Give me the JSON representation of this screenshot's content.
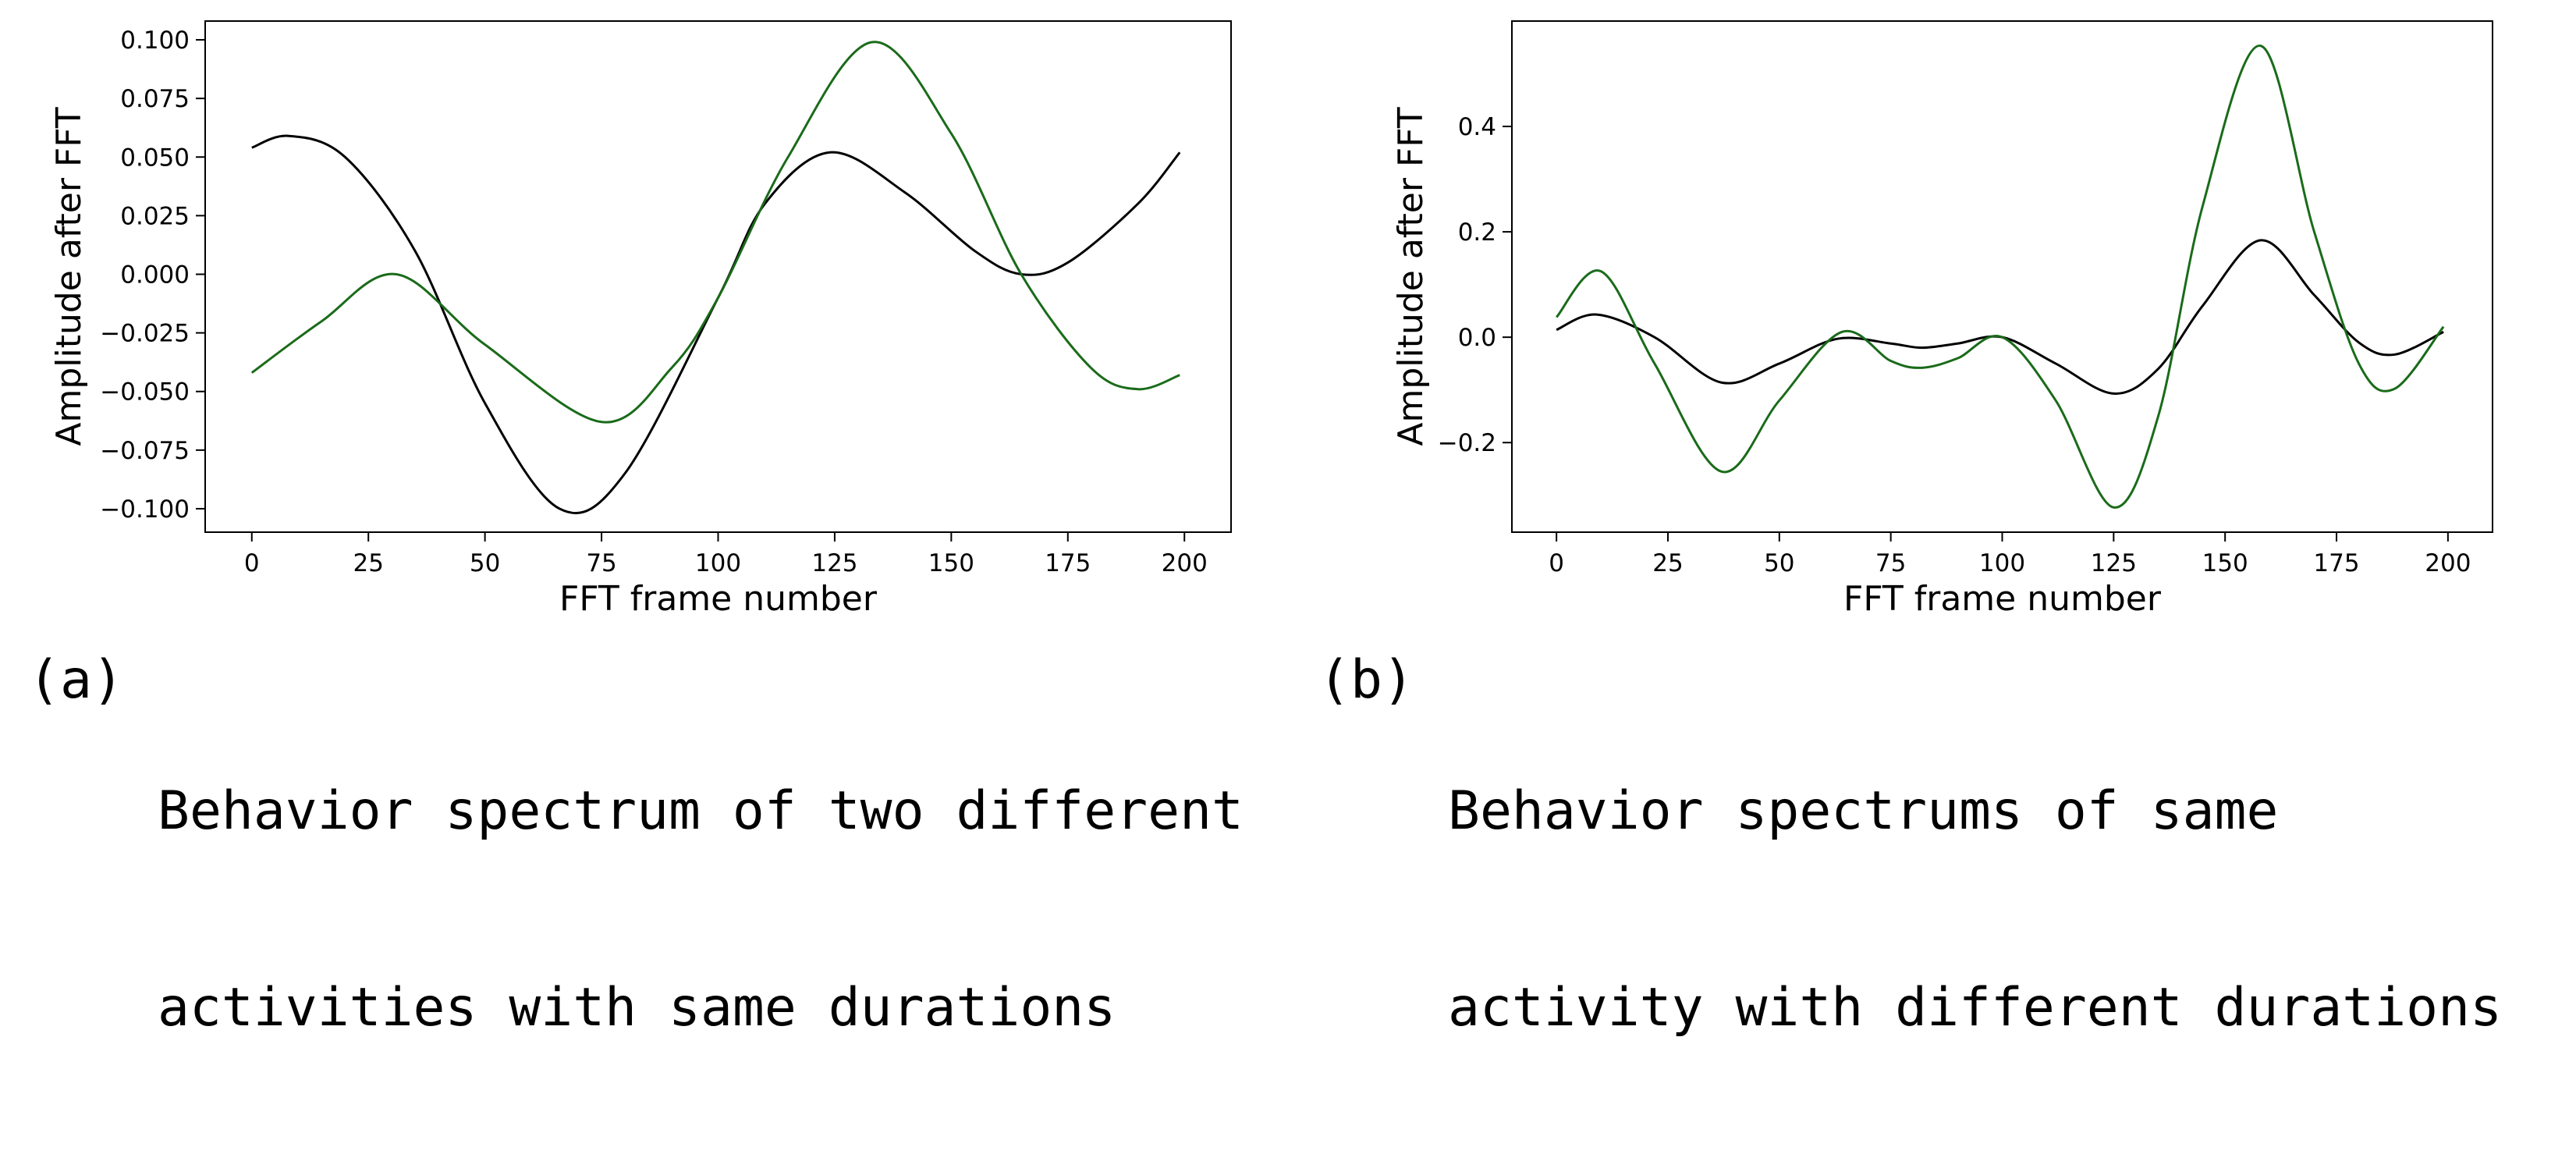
{
  "chart_data": [
    {
      "type": "line",
      "panel_label": "(a)",
      "caption_lines": [
        "Behavior spectrum of two different",
        "activities with same durations"
      ],
      "xlabel": "FFT frame number",
      "ylabel": "Amplitude after FFT",
      "xlim": [
        -10,
        210
      ],
      "ylim": [
        -0.11,
        0.108
      ],
      "xticks": [
        0,
        25,
        50,
        75,
        100,
        125,
        150,
        175,
        200
      ],
      "yticks": [
        -0.1,
        -0.075,
        -0.05,
        -0.025,
        0.0,
        0.025,
        0.05,
        0.075,
        0.1
      ],
      "ytick_labels": [
        "−0.100",
        "−0.075",
        "−0.050",
        "−0.025",
        "0.000",
        "0.025",
        "0.050",
        "0.075",
        "0.100"
      ],
      "grid": false,
      "series": [
        {
          "name": "black curve",
          "color": "#000000",
          "x": [
            0,
            8,
            20,
            35,
            50,
            66,
            80,
            100,
            110,
            124,
            140,
            155,
            165,
            175,
            190,
            199
          ],
          "y": [
            0.054,
            0.059,
            0.05,
            0.01,
            -0.055,
            -0.1,
            -0.085,
            -0.01,
            0.03,
            0.052,
            0.035,
            0.01,
            0.0,
            0.005,
            0.03,
            0.052
          ]
        },
        {
          "name": "green curve",
          "color": "#1a6b1a",
          "x": [
            0,
            15,
            31,
            50,
            75,
            90,
            100,
            115,
            133,
            150,
            165,
            180,
            190,
            199
          ],
          "y": [
            -0.042,
            -0.02,
            0.0,
            -0.03,
            -0.063,
            -0.04,
            -0.01,
            0.05,
            0.099,
            0.06,
            0.0,
            -0.04,
            -0.049,
            -0.043
          ]
        }
      ]
    },
    {
      "type": "line",
      "panel_label": "(b)",
      "caption_lines": [
        "Behavior spectrums of same",
        "activity with different durations"
      ],
      "xlabel": "FFT frame number",
      "ylabel": "Amplitude after FFT",
      "xlim": [
        -10,
        210
      ],
      "ylim": [
        -0.37,
        0.6
      ],
      "xticks": [
        0,
        25,
        50,
        75,
        100,
        125,
        150,
        175,
        200
      ],
      "yticks": [
        -0.2,
        0.0,
        0.2,
        0.4
      ],
      "ytick_labels": [
        "−0.2",
        "0.0",
        "0.2",
        "0.4"
      ],
      "grid": false,
      "series": [
        {
          "name": "black curve",
          "color": "#000000",
          "x": [
            0,
            9,
            22,
            37,
            50,
            63,
            75,
            82,
            90,
            100,
            112,
            125,
            135,
            145,
            158,
            170,
            180,
            188,
            199
          ],
          "y": [
            0.014,
            0.043,
            0.0,
            -0.086,
            -0.05,
            -0.003,
            -0.012,
            -0.02,
            -0.012,
            0.0,
            -0.05,
            -0.107,
            -0.06,
            0.06,
            0.184,
            0.08,
            -0.01,
            -0.033,
            0.01
          ]
        },
        {
          "name": "green curve",
          "color": "#1a6b1a",
          "x": [
            0,
            10,
            22,
            37,
            50,
            64,
            75,
            82,
            90,
            100,
            112,
            125,
            135,
            145,
            158,
            170,
            180,
            188,
            199
          ],
          "y": [
            0.038,
            0.125,
            -0.05,
            -0.255,
            -0.12,
            0.01,
            -0.045,
            -0.058,
            -0.04,
            0.0,
            -0.12,
            -0.323,
            -0.15,
            0.25,
            0.553,
            0.2,
            -0.05,
            -0.098,
            0.02
          ]
        }
      ]
    }
  ]
}
